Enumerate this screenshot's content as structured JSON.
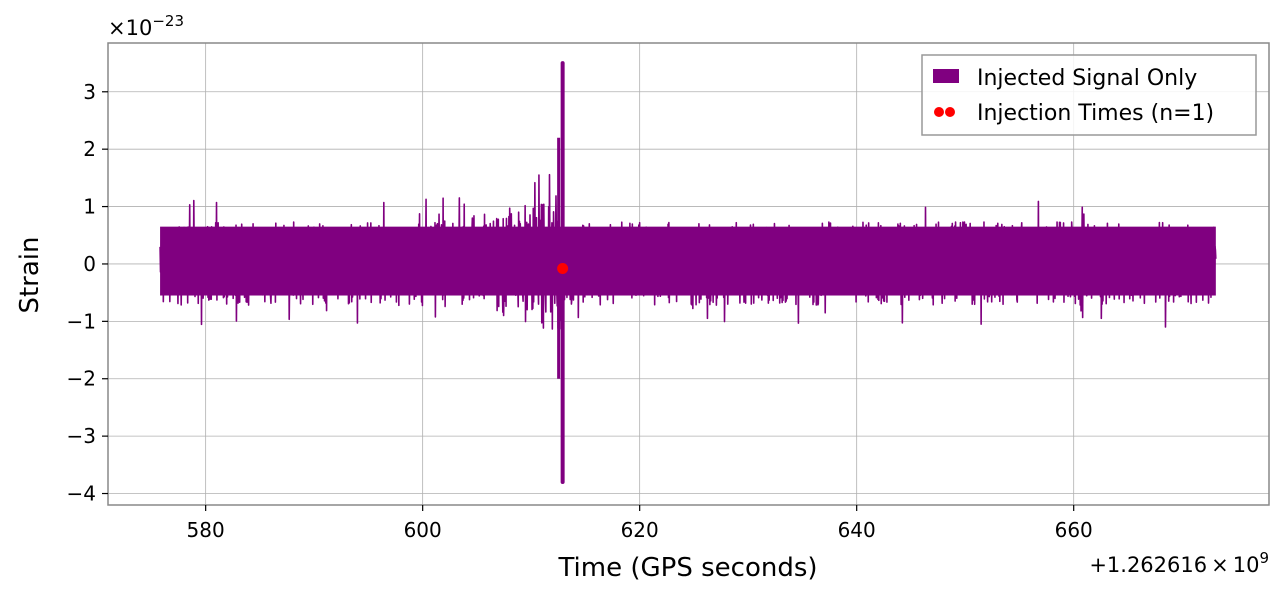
{
  "chart_data": {
    "type": "line",
    "xlabel": "Time (GPS seconds)",
    "ylabel": "Strain",
    "x_offset_label": "+1.262616",
    "x_offset_label_mult": "×",
    "x_offset_base": "10",
    "x_offset_exp": "9",
    "y_scale_mult": "×",
    "y_scale_base": "10",
    "y_scale_exp": "−23",
    "xlim": [
      571,
      678
    ],
    "ylim": [
      -4.2,
      3.85
    ],
    "xticks": [
      580,
      600,
      620,
      640,
      660
    ],
    "xtick_labels": [
      "580",
      "600",
      "620",
      "640",
      "660"
    ],
    "yticks": [
      3,
      2,
      1,
      0,
      -1,
      -2,
      -3,
      -4
    ],
    "ytick_labels": [
      "3",
      "2",
      "1",
      "0",
      "−1",
      "−2",
      "−3",
      "−4"
    ],
    "grid": true,
    "legend_position": "top-right",
    "series": [
      {
        "name": "Injected Signal Only",
        "kind": "line",
        "color": "#800080",
        "x_range": [
          575.8,
          673.1
        ],
        "y_envelope": [
          0.65,
          -0.55
        ],
        "peak": {
          "x": 612.9,
          "y_max": 3.5,
          "y_min": -3.8
        }
      },
      {
        "name": "Injection Times (n=1)",
        "kind": "scatter",
        "color": "#ff0000",
        "x": [
          612.9
        ],
        "y": [
          -0.08
        ]
      }
    ]
  }
}
